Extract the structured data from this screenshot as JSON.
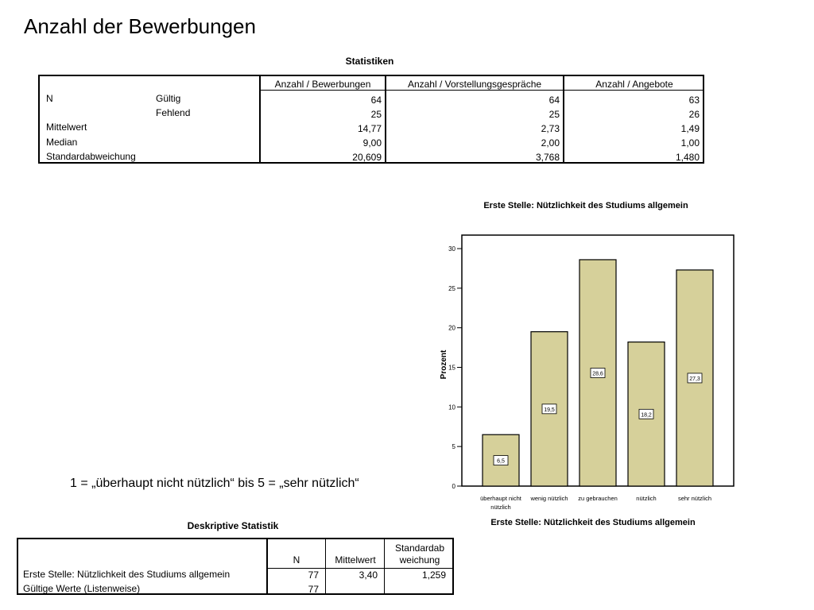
{
  "page": {
    "title": "Anzahl der Bewerbungen",
    "note": "1 = „überhaupt nicht nützlich“ bis 5 = „sehr nützlich“"
  },
  "stats_table": {
    "caption": "Statistiken",
    "columns": [
      "Anzahl / Bewerbungen",
      "Anzahl / Vorstellungsgespräche",
      "Anzahl / Angebote"
    ],
    "rows": [
      {
        "label": "N",
        "sublabel": "Gültig",
        "values": [
          "64",
          "64",
          "63"
        ]
      },
      {
        "label": "",
        "sublabel": "Fehlend",
        "values": [
          "25",
          "25",
          "26"
        ]
      },
      {
        "label": "Mittelwert",
        "sublabel": "",
        "values": [
          "14,77",
          "2,73",
          "1,49"
        ]
      },
      {
        "label": "Median",
        "sublabel": "",
        "values": [
          "9,00",
          "2,00",
          "1,00"
        ]
      },
      {
        "label": "Standardabweichung",
        "sublabel": "",
        "values": [
          "20,609",
          "3,768",
          "1,480"
        ]
      }
    ]
  },
  "desc_table": {
    "caption": "Deskriptive Statistik",
    "columns": [
      "N",
      "Mittelwert",
      "Standardab",
      "weichung"
    ],
    "rows": [
      {
        "label": "Erste Stelle: Nützlichkeit des Studiums allgemein",
        "values": [
          "77",
          "3,40",
          "1,259"
        ]
      },
      {
        "label": "Gültige Werte (Listenweise)",
        "values": [
          "77",
          "",
          ""
        ]
      }
    ]
  },
  "chart_data": {
    "type": "bar",
    "title": "Erste Stelle: Nützlichkeit des Studiums allgemein",
    "xlabel": "Erste Stelle: Nützlichkeit des Studiums allgemein",
    "ylabel": "Prozent",
    "categories": [
      "überhaupt nicht nützlich",
      "wenig nützlich",
      "zu gebrauchen",
      "nützlich",
      "sehr nützlich"
    ],
    "values": [
      6.5,
      19.5,
      28.6,
      18.2,
      27.3
    ],
    "value_labels": [
      "6,5",
      "19,5",
      "28,6",
      "18,2",
      "27,3"
    ],
    "ylim": [
      0,
      30
    ],
    "yticks": [
      "0",
      "5",
      "10",
      "15",
      "20",
      "25",
      "30"
    ],
    "grid": false,
    "colors": {
      "bar_fill": "#d6d09a",
      "bar_stroke": "#000000",
      "label_fill": "#ffffff"
    }
  }
}
